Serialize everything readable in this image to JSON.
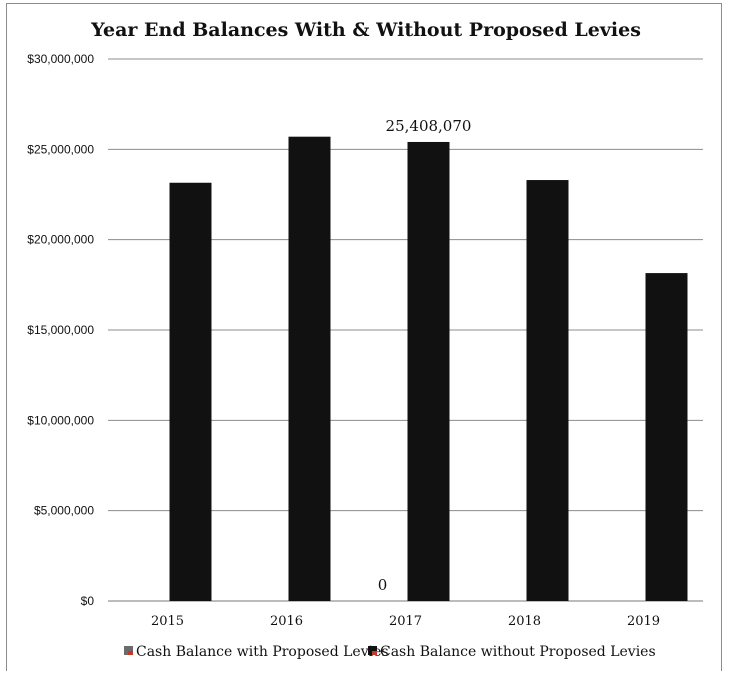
{
  "chart_data": {
    "type": "bar",
    "title": "Year End Balances With & Without Proposed Levies",
    "xlabel": "",
    "ylabel": "",
    "categories": [
      "2015",
      "2016",
      "2017",
      "2018",
      "2019"
    ],
    "series": [
      {
        "name": "Cash Balance with Proposed Levies",
        "color": "#6b6b6b",
        "values": [
          0,
          0,
          0,
          0,
          0
        ]
      },
      {
        "name": "Cash Balance without Proposed Levies",
        "color": "#111111",
        "values": [
          23150000,
          25700000,
          25408070,
          23300000,
          18150000
        ]
      }
    ],
    "ylim": [
      0,
      30000000
    ],
    "yticks": [
      0,
      5000000,
      10000000,
      15000000,
      20000000,
      25000000,
      30000000
    ],
    "ytick_labels": [
      "$0",
      "$5,000,000",
      "$10,000,000",
      "$15,000,000",
      "$20,000,000",
      "$25,000,000",
      "$30,000,000"
    ],
    "data_labels": [
      {
        "series": 0,
        "category": "2017",
        "text": "0"
      },
      {
        "series": 1,
        "category": "2017",
        "text": "25,408,070"
      }
    ],
    "grid": true,
    "legend_position": "bottom"
  }
}
